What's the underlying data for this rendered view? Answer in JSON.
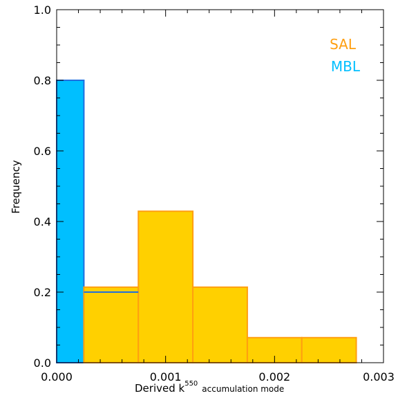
{
  "chart_data": {
    "type": "bar",
    "title": "",
    "xlabel": {
      "main": "Derived k",
      "superscript": "550",
      "subscript": "accumulation mode"
    },
    "ylabel": "Frequency",
    "xlim": [
      0.0,
      0.003
    ],
    "ylim": [
      0.0,
      1.0
    ],
    "x_ticks": [
      {
        "value": 0.0,
        "label": "0.000"
      },
      {
        "value": 0.001,
        "label": "0.001"
      },
      {
        "value": 0.002,
        "label": "0.002"
      },
      {
        "value": 0.003,
        "label": "0.003"
      }
    ],
    "y_ticks": [
      {
        "value": 0.0,
        "label": "0.0"
      },
      {
        "value": 0.2,
        "label": "0.2"
      },
      {
        "value": 0.4,
        "label": "0.4"
      },
      {
        "value": 0.6,
        "label": "0.6"
      },
      {
        "value": 0.8,
        "label": "0.8"
      },
      {
        "value": 1.0,
        "label": "1.0"
      }
    ],
    "bin_edges": [
      0.0,
      0.00025,
      0.00075,
      0.00125,
      0.00175,
      0.00225,
      0.00275
    ],
    "series": [
      {
        "name": "MBL",
        "fill": "#00BFFF",
        "stroke": "#1E6FE0",
        "values": [
          0.8,
          0.2
        ]
      },
      {
        "name": "SAL",
        "fill": "#FFD000",
        "stroke": "#FF9F10",
        "values": [
          0.0,
          0.214,
          0.429,
          0.214,
          0.071,
          0.071
        ]
      }
    ],
    "legend": {
      "placement": "top-right",
      "entries": [
        {
          "label": "SAL",
          "color": "#FF9F10"
        },
        {
          "label": "MBL",
          "color": "#00BFFF"
        }
      ]
    },
    "grid": false
  }
}
